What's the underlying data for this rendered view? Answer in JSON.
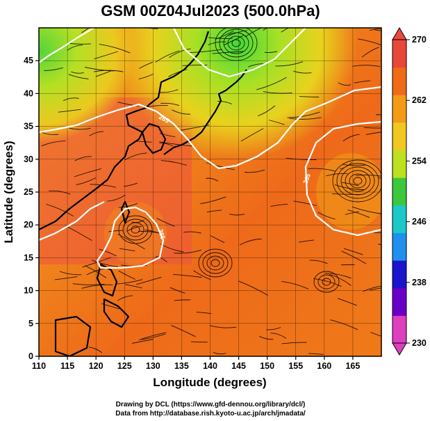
{
  "title": "GSM 00Z04Jul2023 (500.0hPa)",
  "x_axis": {
    "label": "Longitude (degrees)",
    "range": [
      110,
      170
    ],
    "ticks": [
      110,
      115,
      120,
      125,
      130,
      135,
      140,
      145,
      150,
      155,
      160,
      165
    ]
  },
  "y_axis": {
    "label": "Latitude  (degrees)",
    "range": [
      0,
      50
    ],
    "ticks": [
      0,
      5,
      10,
      15,
      20,
      25,
      30,
      35,
      40,
      45
    ]
  },
  "colorbar": {
    "range": [
      230,
      270
    ],
    "labels": [
      270,
      262,
      254,
      246,
      238,
      230
    ],
    "colors": [
      "#dd3fbf",
      "#6a00c8",
      "#1a14cc",
      "#1f90ee",
      "#1cc9c9",
      "#3cc83c",
      "#bde11d",
      "#f0c81f",
      "#f39b17",
      "#ef6b18",
      "#e8473b"
    ]
  },
  "contour_labels": [
    "260",
    "265"
  ],
  "credits": {
    "line1": "Drawing by DCL (https://www.gfd-dennou.org/library/dcl/)",
    "line2": "Data from http://database.rish.kyoto-u.ac.jp/arch/jmadata/"
  },
  "colors": {
    "contour": "#ffffff",
    "coast": "#000000",
    "streamline": "#000000"
  }
}
